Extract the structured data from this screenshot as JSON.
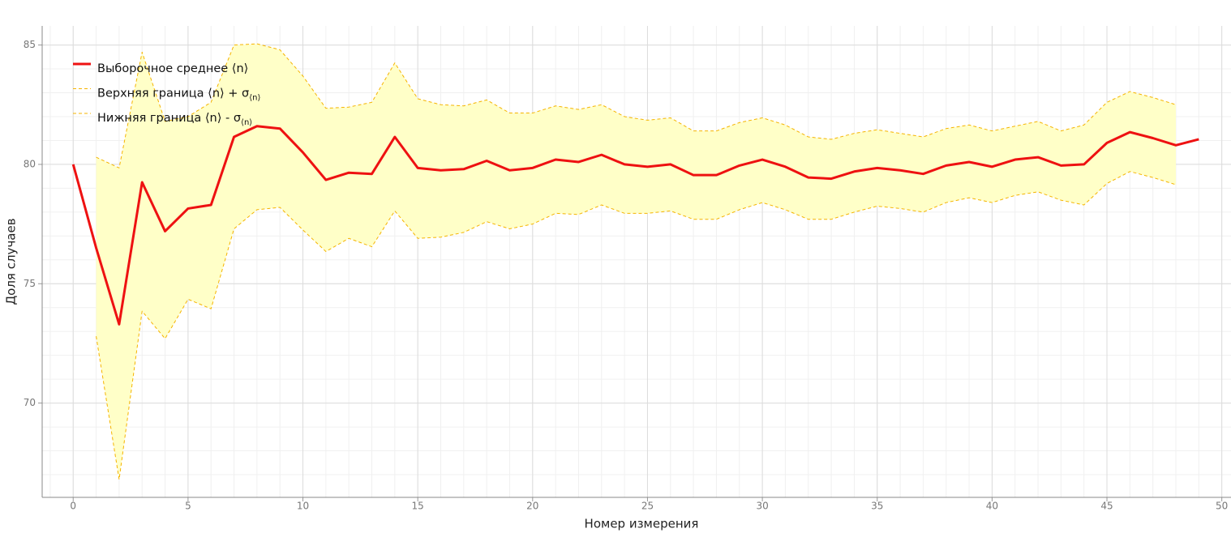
{
  "chart_data": {
    "type": "line",
    "xlabel": "Номер измерения",
    "ylabel": "Доля случаев",
    "x": [
      0,
      1,
      2,
      3,
      4,
      5,
      6,
      7,
      8,
      9,
      10,
      11,
      12,
      13,
      14,
      15,
      16,
      17,
      18,
      19,
      20,
      21,
      22,
      23,
      24,
      25,
      26,
      27,
      28,
      29,
      30,
      31,
      32,
      33,
      34,
      35,
      36,
      37,
      38,
      39,
      40,
      41,
      42,
      43,
      44,
      45,
      46,
      47,
      48,
      49
    ],
    "series": [
      {
        "name": "Выборочное среднее ⟨n⟩",
        "color": "#ee1111",
        "style": "solid",
        "values": [
          80.0,
          76.5,
          73.3,
          79.25,
          77.2,
          78.15,
          78.3,
          81.15,
          81.6,
          81.5,
          80.5,
          79.35,
          79.65,
          79.6,
          81.15,
          79.85,
          79.75,
          79.8,
          80.15,
          79.75,
          79.85,
          80.2,
          80.1,
          80.4,
          80.0,
          79.9,
          80.0,
          79.55,
          79.55,
          79.95,
          80.2,
          79.9,
          79.45,
          79.4,
          79.7,
          79.85,
          79.75,
          79.6,
          79.95,
          80.1,
          79.9,
          80.2,
          80.3,
          79.95,
          80.0,
          80.9,
          81.35,
          81.1,
          80.8,
          81.05
        ]
      },
      {
        "name": "Верхняя граница ⟨n⟩ + σ",
        "name_subscript": "⟨n⟩",
        "color": "#f5b400",
        "style": "dashed",
        "values": [
          null,
          80.3,
          79.85,
          84.7,
          81.8,
          82.0,
          82.6,
          85.0,
          85.05,
          84.8,
          83.7,
          82.35,
          82.4,
          82.6,
          84.25,
          82.75,
          82.5,
          82.45,
          82.7,
          82.15,
          82.15,
          82.45,
          82.3,
          82.5,
          82.0,
          81.85,
          81.95,
          81.4,
          81.4,
          81.75,
          81.95,
          81.65,
          81.15,
          81.05,
          81.3,
          81.45,
          81.3,
          81.15,
          81.5,
          81.65,
          81.4,
          81.6,
          81.8,
          81.4,
          81.65,
          82.6,
          83.05,
          82.8,
          82.5,
          null
        ]
      },
      {
        "name": "Нижняя граница ⟨n⟩ - σ",
        "name_subscript": "⟨n⟩",
        "color": "#f5b400",
        "style": "dashed",
        "values": [
          null,
          72.8,
          66.8,
          73.85,
          72.7,
          74.35,
          73.95,
          77.3,
          78.1,
          78.2,
          77.25,
          76.35,
          76.9,
          76.55,
          78.05,
          76.9,
          76.95,
          77.15,
          77.6,
          77.3,
          77.5,
          77.95,
          77.9,
          78.3,
          77.95,
          77.95,
          78.05,
          77.7,
          77.7,
          78.1,
          78.4,
          78.1,
          77.7,
          77.7,
          78.0,
          78.25,
          78.15,
          78.0,
          78.4,
          78.6,
          78.4,
          78.7,
          78.85,
          78.5,
          78.3,
          79.2,
          79.7,
          79.45,
          79.15,
          null
        ]
      }
    ],
    "band_fill": "#ffffc8",
    "xlim": [
      -1.35,
      50.4
    ],
    "ylim": [
      66.05,
      85.8
    ],
    "xticks": [
      0,
      5,
      10,
      15,
      20,
      25,
      30,
      35,
      40,
      45,
      50
    ],
    "yticks": [
      70,
      75,
      80,
      85
    ],
    "grid": true,
    "minor_grid": true,
    "legend": "upper-left"
  }
}
